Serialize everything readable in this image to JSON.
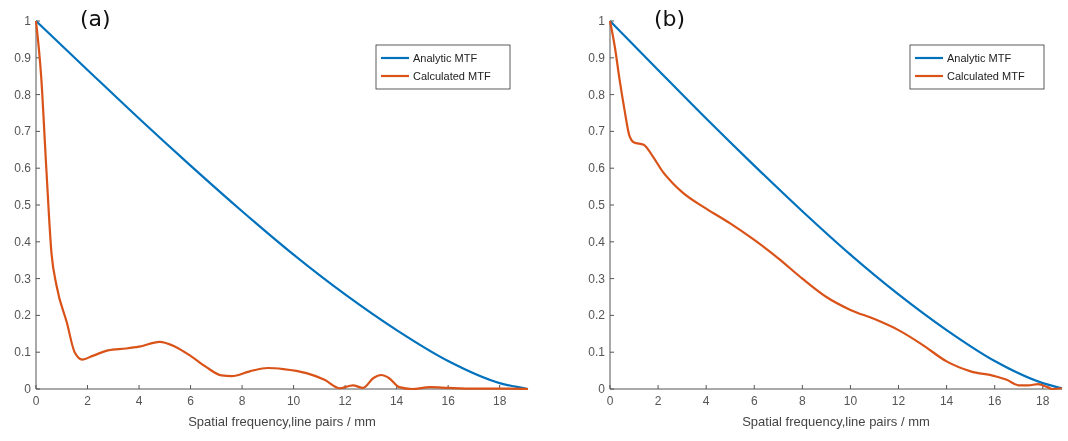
{
  "chart_data": [
    {
      "type": "line",
      "title": "(a)",
      "xlabel": "Spatial frequency,line pairs / mm",
      "xlim": [
        0,
        19.1
      ],
      "ylim": [
        0,
        1
      ],
      "xticks": [
        0,
        2,
        4,
        6,
        8,
        10,
        12,
        14,
        16,
        18
      ],
      "yticks": [
        0,
        0.1,
        0.2,
        0.3,
        0.4,
        0.5,
        0.6,
        0.7,
        0.8,
        0.9,
        1
      ],
      "grid": false,
      "legend": "top right",
      "marker": "none",
      "line_style": "solid",
      "series": [
        {
          "name": "Analytic MTF",
          "color": "#0072bd",
          "x": [
            0,
            2,
            4,
            6,
            8,
            10,
            12,
            14,
            16,
            18,
            19.1
          ],
          "values": [
            1,
            0.867,
            0.735,
            0.607,
            0.483,
            0.365,
            0.257,
            0.16,
            0.076,
            0.016,
            0
          ]
        },
        {
          "name": "Calculated MTF",
          "color": "#d95319",
          "x": [
            0,
            0.2,
            0.4,
            0.6,
            0.8,
            1.2,
            1.5,
            1.8,
            2.2,
            2.8,
            3.5,
            4,
            4.8,
            5.4,
            6,
            6.6,
            7.2,
            7.6,
            8.3,
            9,
            9.6,
            10.5,
            11.2,
            11.8,
            12.3,
            12.7,
            13.1,
            13.4,
            13.7,
            14.1,
            14.6,
            15.3,
            16,
            17,
            18,
            19.1
          ],
          "values": [
            1,
            0.85,
            0.6,
            0.37,
            0.28,
            0.18,
            0.1,
            0.08,
            0.09,
            0.105,
            0.11,
            0.115,
            0.128,
            0.115,
            0.09,
            0.06,
            0.037,
            0.035,
            0.048,
            0.057,
            0.054,
            0.043,
            0.025,
            0.002,
            0.01,
            0.003,
            0.03,
            0.038,
            0.03,
            0.005,
            0,
            0.005,
            0.003,
            0.001,
            0.001,
            0
          ]
        }
      ]
    },
    {
      "type": "line",
      "title": "(b)",
      "xlabel": "Spatial frequency,line pairs / mm",
      "xlim": [
        0,
        18.8
      ],
      "ylim": [
        0,
        1
      ],
      "xticks": [
        0,
        2,
        4,
        6,
        8,
        10,
        12,
        14,
        16,
        18
      ],
      "yticks": [
        0,
        0.1,
        0.2,
        0.3,
        0.4,
        0.5,
        0.6,
        0.7,
        0.8,
        0.9,
        1
      ],
      "grid": false,
      "legend": "top right",
      "marker": "none",
      "line_style": "solid",
      "series": [
        {
          "name": "Analytic MTF",
          "color": "#0072bd",
          "x": [
            0,
            2,
            4,
            6,
            8,
            10,
            12,
            14,
            16,
            18,
            18.8
          ],
          "values": [
            1,
            0.867,
            0.735,
            0.607,
            0.483,
            0.365,
            0.257,
            0.16,
            0.076,
            0.016,
            0.002
          ]
        },
        {
          "name": "Calculated MTF",
          "color": "#d95319",
          "x": [
            0,
            0.2,
            0.4,
            0.6,
            0.8,
            1,
            1.4,
            1.8,
            2.2,
            2.6,
            3,
            4,
            5,
            6,
            7,
            8,
            9,
            10,
            11,
            12,
            13,
            14,
            15,
            16,
            16.5,
            17,
            17.4,
            17.8,
            18.2,
            18.4,
            18.8
          ],
          "values": [
            1,
            0.93,
            0.84,
            0.76,
            0.69,
            0.67,
            0.664,
            0.63,
            0.59,
            0.56,
            0.535,
            0.49,
            0.45,
            0.405,
            0.355,
            0.3,
            0.25,
            0.215,
            0.19,
            0.16,
            0.12,
            0.075,
            0.048,
            0.035,
            0.025,
            0.01,
            0.01,
            0.013,
            0.005,
            0,
            0.002
          ]
        }
      ]
    }
  ]
}
